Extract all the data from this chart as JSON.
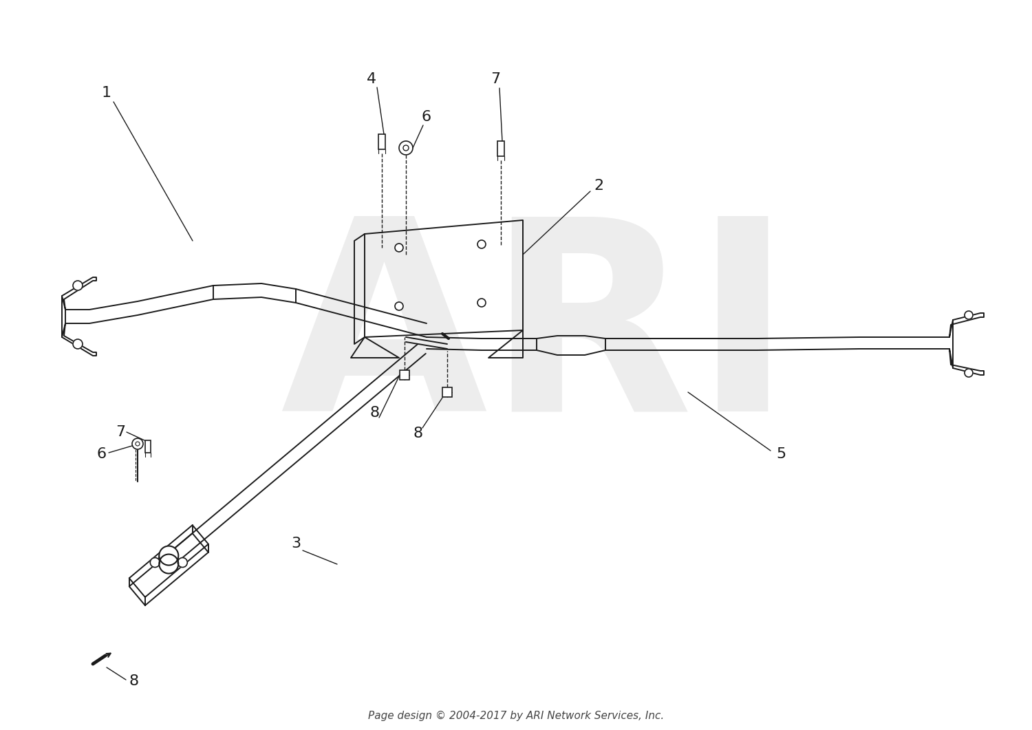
{
  "footer": "Page design © 2004-2017 by ARI Network Services, Inc.",
  "background_color": "#ffffff",
  "line_color": "#1a1a1a",
  "watermark_color": "#cccccc"
}
